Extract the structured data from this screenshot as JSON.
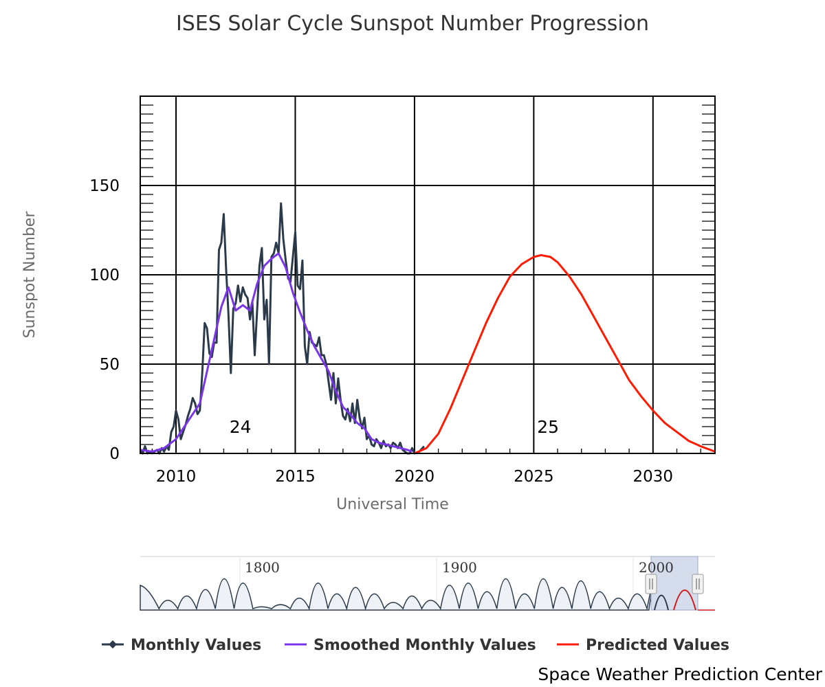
{
  "chart_data": {
    "type": "line",
    "title": "ISES Solar Cycle Sunspot Number Progression",
    "xlabel": "Universal Time",
    "ylabel": "Sunspot Number",
    "xlim": [
      2008.5,
      2032.6
    ],
    "ylim": [
      0,
      200
    ],
    "x_ticks": [
      2010,
      2015,
      2020,
      2025,
      2030
    ],
    "y_ticks": [
      0,
      50,
      100,
      150
    ],
    "grid": true,
    "colors": {
      "monthly": "#2b3a4a",
      "smoothed": "#7b35e8",
      "predicted": "#ff1a00",
      "navigator_fill": "#eef1f5",
      "navigator_selection": "#c7d0e6"
    },
    "cycle_labels": [
      {
        "text": "24",
        "x": 2012.7,
        "y": 15
      },
      {
        "text": "25",
        "x": 2025.6,
        "y": 15
      }
    ],
    "series": [
      {
        "name": "Monthly Values",
        "x": [
          2008.5,
          2008.6,
          2008.7,
          2008.8,
          2008.9,
          2009.0,
          2009.1,
          2009.2,
          2009.3,
          2009.4,
          2009.5,
          2009.6,
          2009.7,
          2009.8,
          2009.9,
          2010.0,
          2010.1,
          2010.2,
          2010.3,
          2010.4,
          2010.5,
          2010.6,
          2010.7,
          2010.8,
          2010.9,
          2011.0,
          2011.1,
          2011.2,
          2011.3,
          2011.4,
          2011.5,
          2011.6,
          2011.7,
          2011.8,
          2011.9,
          2012.0,
          2012.1,
          2012.2,
          2012.3,
          2012.4,
          2012.5,
          2012.6,
          2012.7,
          2012.8,
          2012.9,
          2013.0,
          2013.1,
          2013.2,
          2013.3,
          2013.4,
          2013.5,
          2013.6,
          2013.7,
          2013.8,
          2013.9,
          2014.0,
          2014.1,
          2014.2,
          2014.3,
          2014.4,
          2014.5,
          2014.6,
          2014.7,
          2014.8,
          2014.9,
          2015.0,
          2015.1,
          2015.2,
          2015.3,
          2015.4,
          2015.5,
          2015.6,
          2015.7,
          2015.8,
          2015.9,
          2016.0,
          2016.1,
          2016.2,
          2016.3,
          2016.4,
          2016.5,
          2016.6,
          2016.7,
          2016.8,
          2016.9,
          2017.0,
          2017.1,
          2017.2,
          2017.3,
          2017.4,
          2017.5,
          2017.6,
          2017.7,
          2017.8,
          2017.9,
          2018.0,
          2018.1,
          2018.2,
          2018.3,
          2018.4,
          2018.5,
          2018.6,
          2018.7,
          2018.8,
          2018.9,
          2019.0,
          2019.1,
          2019.2,
          2019.3,
          2019.4,
          2019.5,
          2019.6,
          2019.7,
          2019.8,
          2019.9,
          2020.0,
          2020.2,
          2020.4
        ],
        "values": [
          2,
          0,
          4,
          0,
          1,
          0,
          1,
          2,
          0,
          3,
          1,
          4,
          2,
          12,
          15,
          24,
          19,
          8,
          12,
          16,
          21,
          25,
          31,
          28,
          22,
          24,
          45,
          73,
          70,
          56,
          54,
          62,
          62,
          114,
          118,
          134,
          103,
          78,
          45,
          81,
          84,
          94,
          85,
          93,
          89,
          87,
          75,
          85,
          55,
          80,
          105,
          115,
          75,
          86,
          50,
          110,
          112,
          118,
          112,
          140,
          120,
          108,
          98,
          96,
          110,
          124,
          94,
          92,
          108,
          60,
          50,
          68,
          62,
          61,
          60,
          65,
          55,
          55,
          50,
          40,
          30,
          45,
          28,
          42,
          30,
          21,
          19,
          25,
          18,
          28,
          17,
          30,
          20,
          14,
          20,
          8,
          10,
          5,
          4,
          8,
          6,
          3,
          7,
          4,
          5,
          3,
          6,
          5,
          3,
          6,
          2,
          1,
          0,
          0,
          3,
          0,
          1,
          4
        ]
      },
      {
        "name": "Smoothed Monthly Values",
        "x": [
          2008.5,
          2009.0,
          2009.5,
          2010.0,
          2010.5,
          2011.0,
          2011.5,
          2011.9,
          2012.2,
          2012.5,
          2012.8,
          2013.1,
          2013.4,
          2013.7,
          2014.0,
          2014.3,
          2014.6,
          2014.9,
          2015.2,
          2015.5,
          2015.8,
          2016.1,
          2016.4,
          2016.7,
          2017.0,
          2017.3,
          2017.6,
          2017.9,
          2018.2,
          2018.5,
          2018.8,
          2019.1,
          2019.4,
          2019.7,
          2019.9
        ],
        "values": [
          2,
          1,
          3,
          8,
          18,
          28,
          58,
          82,
          93,
          80,
          83,
          80,
          95,
          105,
          109,
          112,
          104,
          90,
          79,
          69,
          60,
          53,
          46,
          35,
          26,
          22,
          17,
          14,
          8,
          6,
          5,
          4,
          3,
          2,
          1
        ]
      },
      {
        "name": "Predicted Values",
        "x": [
          2020.0,
          2020.5,
          2021.0,
          2021.5,
          2022.0,
          2022.5,
          2023.0,
          2023.5,
          2024.0,
          2024.5,
          2025.0,
          2025.3,
          2025.7,
          2026.0,
          2026.5,
          2027.0,
          2027.5,
          2028.0,
          2028.5,
          2029.0,
          2029.5,
          2030.0,
          2030.5,
          2031.0,
          2031.5,
          2032.0,
          2032.6
        ],
        "values": [
          0,
          3,
          11,
          25,
          41,
          57,
          73,
          87,
          99,
          106,
          110,
          111,
          110,
          107,
          99,
          89,
          77,
          65,
          53,
          41,
          32,
          24,
          17,
          12,
          7,
          4,
          1
        ]
      }
    ],
    "navigator": {
      "labels": [
        "1800",
        "1900",
        "2000"
      ]
    }
  },
  "legend": {
    "items": [
      {
        "label": "Monthly Values"
      },
      {
        "label": "Smoothed Monthly Values"
      },
      {
        "label": "Predicted Values"
      }
    ]
  },
  "footer": {
    "credit": "Space Weather Prediction Center"
  }
}
